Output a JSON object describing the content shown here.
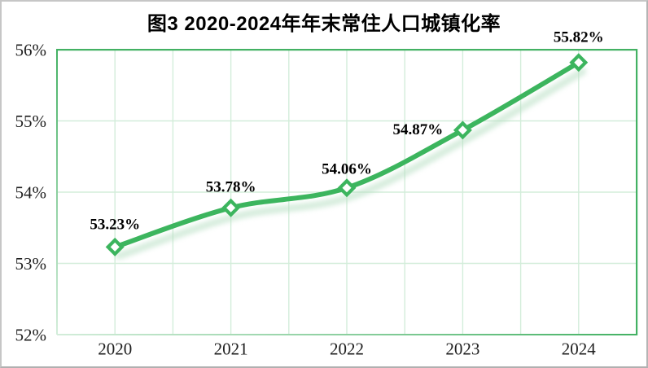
{
  "chart_data": {
    "type": "line",
    "title": "图3 2020-2024年年末常住人口城镇化率",
    "categories": [
      "2020",
      "2021",
      "2022",
      "2023",
      "2024"
    ],
    "values": [
      53.23,
      53.78,
      54.06,
      54.87,
      55.82
    ],
    "point_labels": [
      "53.23%",
      "53.78%",
      "54.06%",
      "54.87%",
      "55.82%"
    ],
    "xlabel": "",
    "ylabel": "",
    "ylim": [
      52,
      56
    ],
    "ytick_step": 1,
    "yticks": [
      "52%",
      "53%",
      "54%",
      "55%",
      "56%"
    ],
    "grid": true,
    "x_minor_gridlines_per_interval": 2,
    "legend_position": "none",
    "marker": "diamond-open",
    "colors": {
      "line": "#3cb55e",
      "marker_fill": "#ffffff",
      "marker_stroke": "#3cb55e",
      "plot_border": "#43b163",
      "gridline": "#d3edda",
      "line_shadow": "#b7dfc3",
      "tick_text": "#1f1f1f",
      "label_text": "#000000",
      "title_text": "#000000",
      "background": "#ffffff",
      "outer_frame": "#c6c6c6"
    }
  }
}
